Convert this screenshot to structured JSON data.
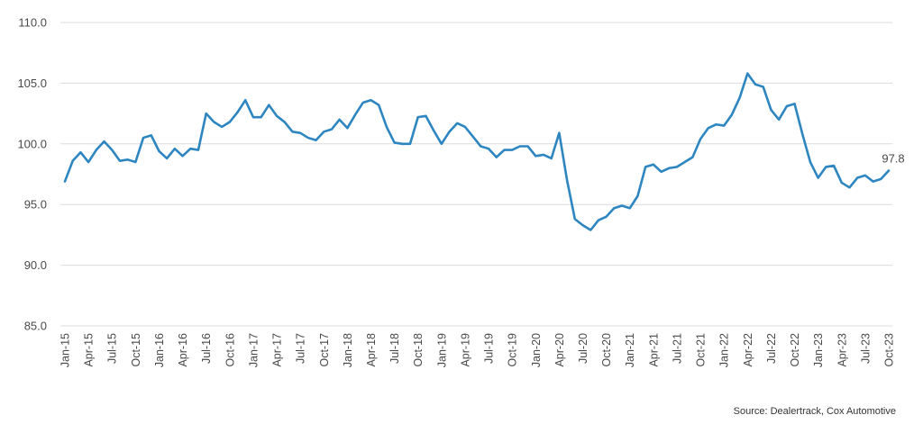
{
  "chart_data": {
    "type": "line",
    "title": "",
    "xlabel": "",
    "ylabel": "",
    "ylim": [
      85,
      110
    ],
    "yticks": [
      "85.0",
      "90.0",
      "95.0",
      "100.0",
      "105.0",
      "110.0"
    ],
    "grid": true,
    "x_tick_labels": [
      "Jan-15",
      "Apr-15",
      "Jul-15",
      "Oct-15",
      "Jan-16",
      "Apr-16",
      "Jul-16",
      "Oct-16",
      "Jan-17",
      "Apr-17",
      "Jul-17",
      "Oct-17",
      "Jan-18",
      "Apr-18",
      "Jul-18",
      "Oct-18",
      "Jan-19",
      "Apr-19",
      "Jul-19",
      "Oct-19",
      "Jan-20",
      "Apr-20",
      "Jul-20",
      "Oct-20",
      "Jan-21",
      "Apr-21",
      "Jul-21",
      "Oct-21",
      "Jan-22",
      "Apr-22",
      "Jul-22",
      "Oct-22",
      "Jan-23",
      "Apr-23",
      "Jul-23",
      "Oct-23"
    ],
    "x_start": "Jan-15",
    "x_end": "Oct-23",
    "series": [
      {
        "color": "#2e86c1",
        "values": [
          96.9,
          98.6,
          99.3,
          98.5,
          99.5,
          100.2,
          99.5,
          98.6,
          98.7,
          98.5,
          100.5,
          100.7,
          99.4,
          98.8,
          99.6,
          99.0,
          99.6,
          99.5,
          102.5,
          101.8,
          101.4,
          101.8,
          102.6,
          103.6,
          102.2,
          102.2,
          103.2,
          102.3,
          101.8,
          101.0,
          100.9,
          100.5,
          100.3,
          101.0,
          101.2,
          102.0,
          101.3,
          102.4,
          103.4,
          103.6,
          103.2,
          101.4,
          100.1,
          100.0,
          100.0,
          102.2,
          102.3,
          101.1,
          100.0,
          101.0,
          101.7,
          101.4,
          100.6,
          99.8,
          99.6,
          98.9,
          99.5,
          99.5,
          99.8,
          99.8,
          99.0,
          99.1,
          98.8,
          100.9,
          97.0,
          93.8,
          93.3,
          92.9,
          93.7,
          94.0,
          94.7,
          94.9,
          94.7,
          95.7,
          98.1,
          98.3,
          97.7,
          98.0,
          98.1,
          98.5,
          98.9,
          100.4,
          101.3,
          101.6,
          101.5,
          102.4,
          103.8,
          105.8,
          104.9,
          104.7,
          102.8,
          102.0,
          103.1,
          103.3,
          100.8,
          98.5,
          97.2,
          98.1,
          98.2,
          96.8,
          96.4,
          97.2,
          97.4,
          96.9,
          97.1,
          97.8
        ]
      }
    ],
    "end_label": "97.8"
  },
  "source": "Source: Dealertrack, Cox Automotive"
}
